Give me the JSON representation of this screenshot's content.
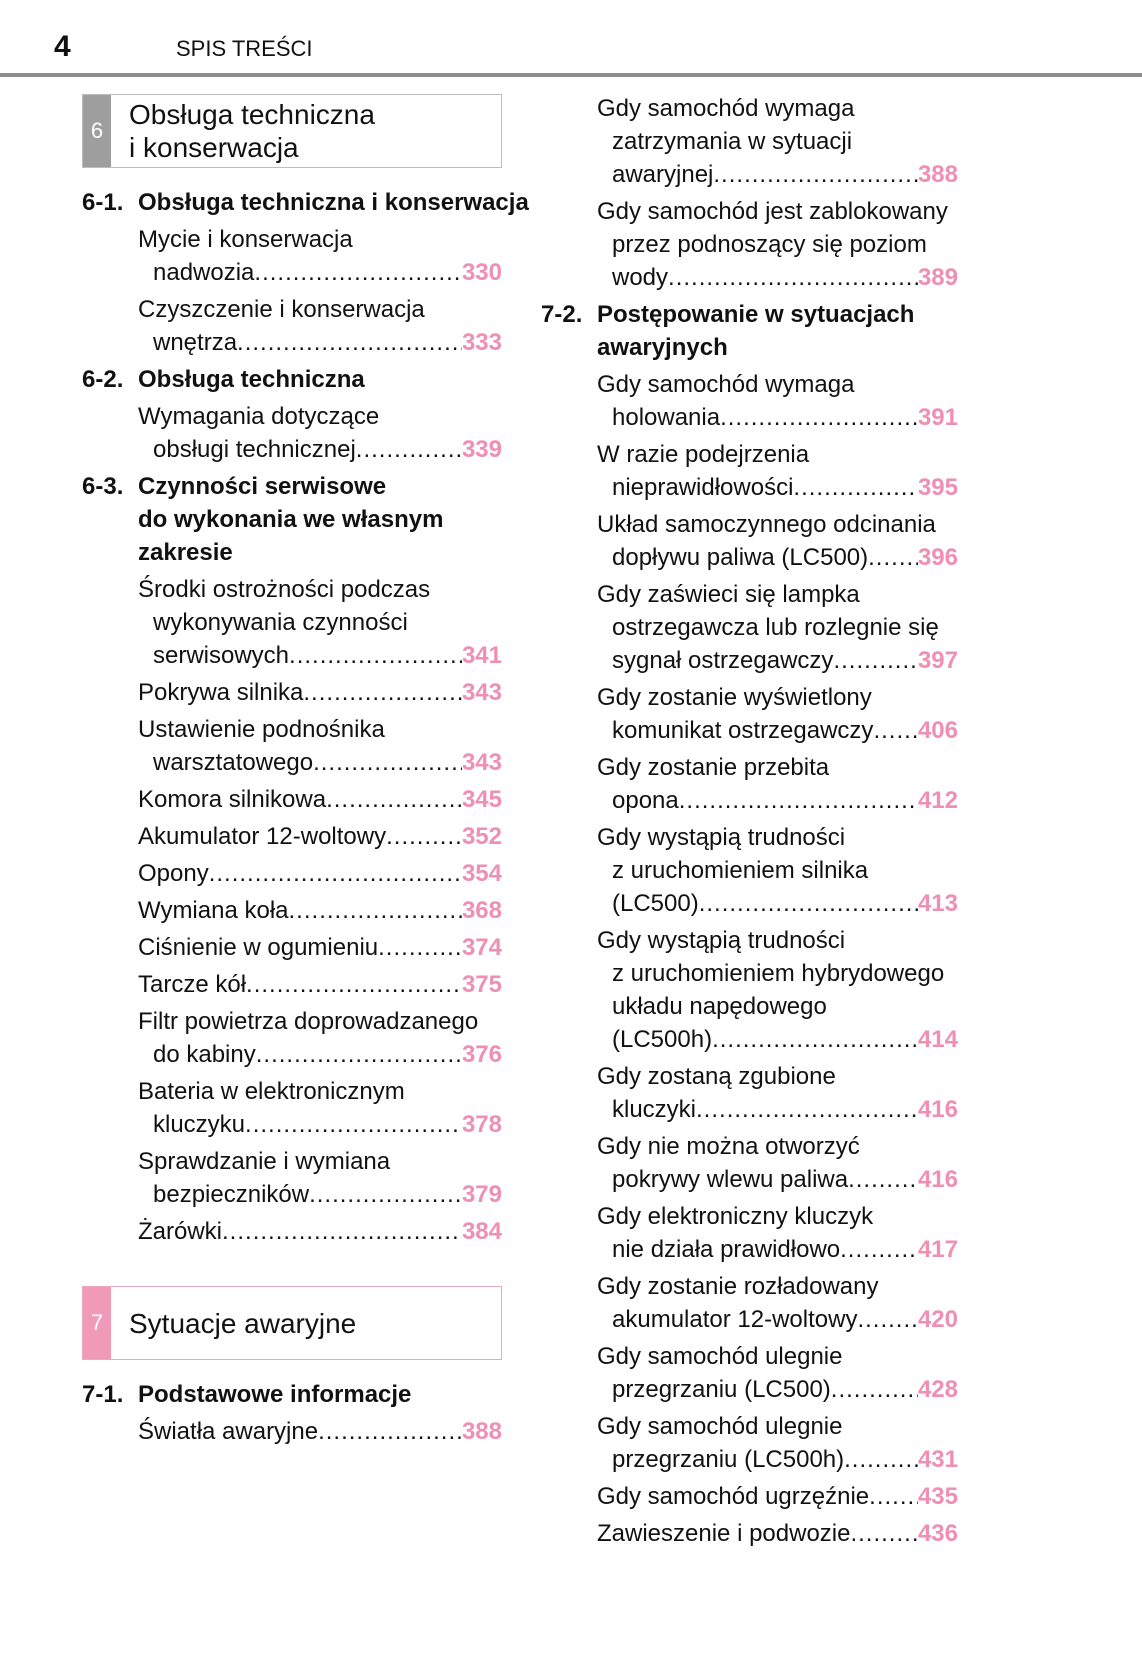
{
  "header": {
    "page_number": "4",
    "title": "SPIS TREŚCI"
  },
  "colors": {
    "section6_tab": "#9e9e9e",
    "section7_tab": "#f19ab8",
    "page_link": "#ee8fb3"
  },
  "left_column": [
    {
      "type": "section",
      "num": "6",
      "title": [
        "Obsługa techniczna",
        "i konserwacja"
      ]
    },
    {
      "type": "heading",
      "num": "6-1.",
      "lines": [
        "Obsługa techniczna i konserwacja"
      ]
    },
    {
      "type": "entry",
      "lines": [
        "Mycie i konserwacja",
        "nadwozia"
      ],
      "page": "330"
    },
    {
      "type": "entry",
      "lines": [
        "Czyszczenie i konserwacja",
        "wnętrza"
      ],
      "page": "333"
    },
    {
      "type": "heading",
      "num": "6-2.",
      "lines": [
        "Obsługa techniczna"
      ]
    },
    {
      "type": "entry",
      "lines": [
        "Wymagania dotyczące",
        "obsługi technicznej"
      ],
      "page": "339"
    },
    {
      "type": "heading",
      "num": "6-3.",
      "lines": [
        "Czynności serwisowe",
        "do wykonania we własnym",
        "zakresie"
      ]
    },
    {
      "type": "entry",
      "lines": [
        "Środki ostrożności podczas",
        "wykonywania czynności",
        "serwisowych"
      ],
      "page": "341"
    },
    {
      "type": "entry",
      "lines": [
        "Pokrywa silnika"
      ],
      "page": "343"
    },
    {
      "type": "entry",
      "lines": [
        "Ustawienie podnośnika",
        "warsztatowego"
      ],
      "page": "343"
    },
    {
      "type": "entry",
      "lines": [
        "Komora silnikowa"
      ],
      "page": "345"
    },
    {
      "type": "entry",
      "lines": [
        "Akumulator 12-woltowy"
      ],
      "page": "352"
    },
    {
      "type": "entry",
      "lines": [
        "Opony"
      ],
      "page": "354"
    },
    {
      "type": "entry",
      "lines": [
        "Wymiana koła"
      ],
      "page": "368"
    },
    {
      "type": "entry",
      "lines": [
        "Ciśnienie w ogumieniu"
      ],
      "page": "374"
    },
    {
      "type": "entry",
      "lines": [
        "Tarcze kół"
      ],
      "page": "375"
    },
    {
      "type": "entry",
      "lines": [
        "Filtr powietrza doprowadzanego",
        "do kabiny"
      ],
      "page": "376"
    },
    {
      "type": "entry",
      "lines": [
        "Bateria w elektronicznym",
        "kluczyku"
      ],
      "page": "378"
    },
    {
      "type": "entry",
      "lines": [
        "Sprawdzanie i wymiana",
        "bezpieczników"
      ],
      "page": "379"
    },
    {
      "type": "entry",
      "lines": [
        "Żarówki"
      ],
      "page": "384"
    },
    {
      "type": "section",
      "num": "7",
      "title": [
        "Sytuacje awaryjne"
      ]
    },
    {
      "type": "heading",
      "num": "7-1.",
      "lines": [
        "Podstawowe informacje"
      ]
    },
    {
      "type": "entry",
      "lines": [
        "Światła awaryjne"
      ],
      "page": "388"
    }
  ],
  "right_column": [
    {
      "type": "entry",
      "lines": [
        "Gdy samochód wymaga",
        "zatrzymania w sytuacji",
        "awaryjnej"
      ],
      "page": "388"
    },
    {
      "type": "entry",
      "lines": [
        "Gdy samochód jest zablokowany",
        "przez podnoszący się poziom",
        "wody"
      ],
      "page": "389"
    },
    {
      "type": "heading",
      "num": "7-2.",
      "lines": [
        "Postępowanie w sytuacjach",
        "awaryjnych"
      ]
    },
    {
      "type": "entry",
      "lines": [
        "Gdy samochód wymaga",
        "holowania"
      ],
      "page": "391"
    },
    {
      "type": "entry",
      "lines": [
        "W razie podejrzenia",
        "nieprawidłowości"
      ],
      "page": "395"
    },
    {
      "type": "entry",
      "lines": [
        "Układ samoczynnego odcinania",
        "dopływu paliwa (LC500)"
      ],
      "page": "396"
    },
    {
      "type": "entry",
      "lines": [
        "Gdy zaświeci się lampka",
        "ostrzegawcza lub rozlegnie się",
        "sygnał ostrzegawczy"
      ],
      "page": "397"
    },
    {
      "type": "entry",
      "lines": [
        "Gdy zostanie wyświetlony",
        "komunikat ostrzegawczy"
      ],
      "page": "406"
    },
    {
      "type": "entry",
      "lines": [
        "Gdy zostanie przebita",
        "opona"
      ],
      "page": "412"
    },
    {
      "type": "entry",
      "lines": [
        "Gdy wystąpią trudności",
        "z uruchomieniem silnika",
        "(LC500)"
      ],
      "page": "413"
    },
    {
      "type": "entry",
      "lines": [
        "Gdy wystąpią trudności",
        "z uruchomieniem hybrydowego",
        "układu napędowego",
        "(LC500h)"
      ],
      "page": "414"
    },
    {
      "type": "entry",
      "lines": [
        "Gdy zostaną zgubione",
        "kluczyki"
      ],
      "page": "416"
    },
    {
      "type": "entry",
      "lines": [
        "Gdy nie można otworzyć",
        "pokrywy wlewu paliwa"
      ],
      "page": "416"
    },
    {
      "type": "entry",
      "lines": [
        "Gdy elektroniczny kluczyk",
        "nie działa prawidłowo"
      ],
      "page": "417"
    },
    {
      "type": "entry",
      "lines": [
        "Gdy zostanie rozładowany",
        "akumulator 12-woltowy"
      ],
      "page": "420"
    },
    {
      "type": "entry",
      "lines": [
        "Gdy samochód ulegnie",
        "przegrzaniu (LC500)"
      ],
      "page": "428"
    },
    {
      "type": "entry",
      "lines": [
        "Gdy samochód ulegnie",
        "przegrzaniu (LC500h)"
      ],
      "page": "431"
    },
    {
      "type": "entry",
      "lines": [
        "Gdy samochód ugrzęźnie"
      ],
      "page": "435"
    },
    {
      "type": "entry",
      "lines": [
        "Zawieszenie i podwozie"
      ],
      "page": "436"
    }
  ]
}
